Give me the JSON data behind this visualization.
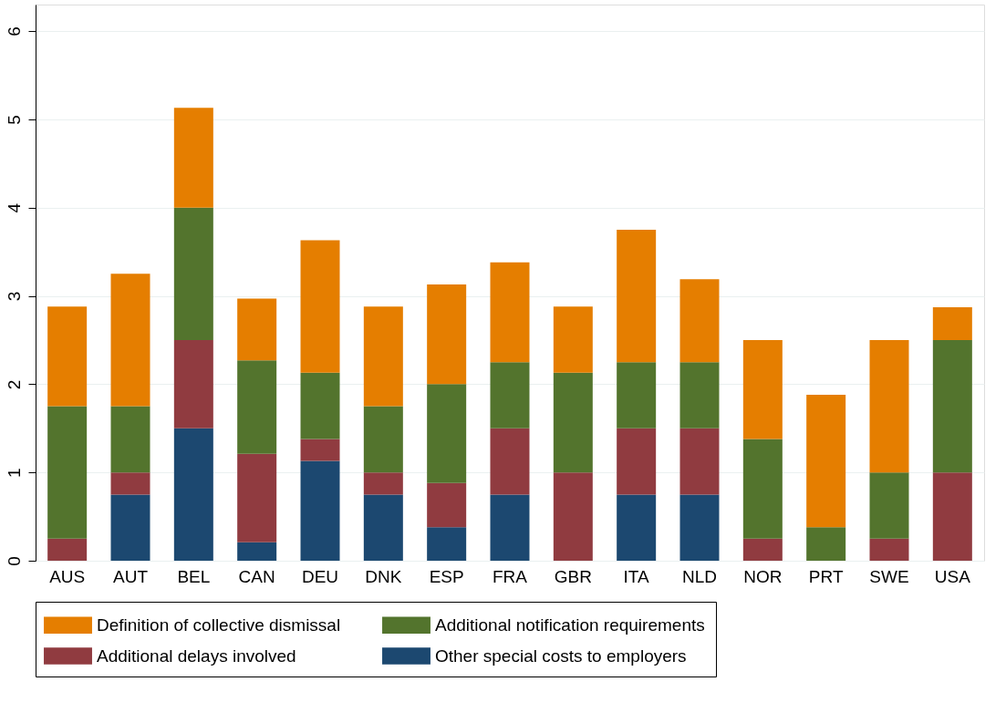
{
  "chart_data": {
    "type": "bar",
    "stacked": true,
    "categories": [
      "AUS",
      "AUT",
      "BEL",
      "CAN",
      "DEU",
      "DNK",
      "ESP",
      "FRA",
      "GBR",
      "ITA",
      "NLD",
      "NOR",
      "PRT",
      "SWE",
      "USA"
    ],
    "series": [
      {
        "name": "Other special costs to employers",
        "color": "#1c4870",
        "values": [
          0,
          0.75,
          1.5,
          0.21,
          1.13,
          0.75,
          0.38,
          0.75,
          0,
          0.75,
          0.75,
          0,
          0,
          0,
          0
        ]
      },
      {
        "name": "Additional delays involved",
        "color": "#903b40",
        "values": [
          0.25,
          0.25,
          1.0,
          1.0,
          0.25,
          0.25,
          0.5,
          0.75,
          1.0,
          0.75,
          0.75,
          0.25,
          0,
          0.25,
          1.0
        ]
      },
      {
        "name": "Additional notification requirements",
        "color": "#53742d",
        "values": [
          1.5,
          0.75,
          1.5,
          1.06,
          0.75,
          0.75,
          1.12,
          0.75,
          1.13,
          0.75,
          0.75,
          1.13,
          0.38,
          0.75,
          1.5
        ]
      },
      {
        "name": "Definition of collective dismissal",
        "color": "#e57e00",
        "values": [
          1.13,
          1.5,
          1.13,
          0.7,
          1.5,
          1.13,
          1.13,
          1.13,
          0.75,
          1.5,
          0.94,
          1.12,
          1.5,
          1.5,
          0.37
        ]
      }
    ],
    "ylim": [
      0,
      6.3
    ],
    "yticks": [
      0,
      1,
      2,
      3,
      4,
      5,
      6
    ],
    "grid": "y",
    "legend": "bottom"
  }
}
